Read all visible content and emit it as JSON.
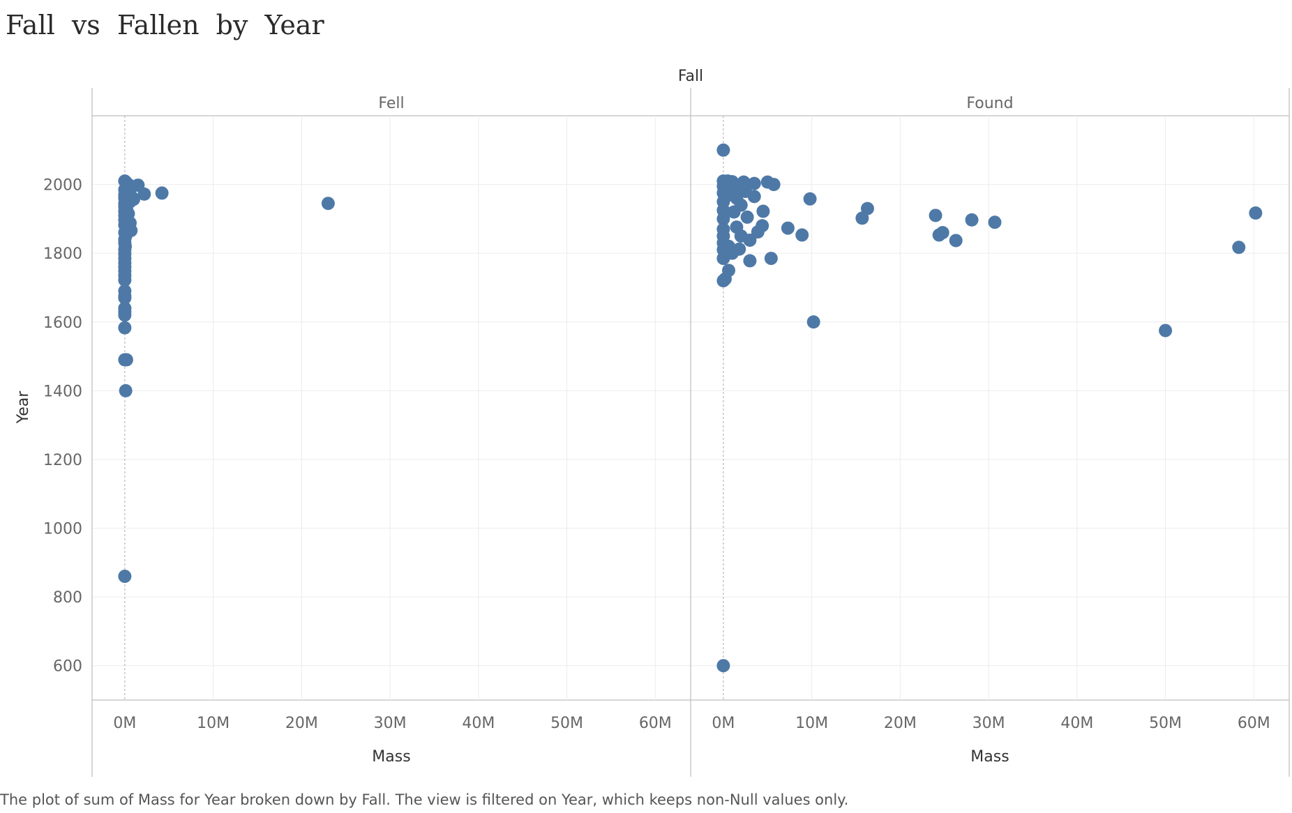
{
  "chart_data": {
    "type": "scatter",
    "title": "Fall vs Fallen by Year",
    "facet_title": "Fall",
    "xlabel": "Mass",
    "ylabel": "Year",
    "xlim": [
      -3700000,
      64000000
    ],
    "ylim": [
      500,
      2200
    ],
    "x_ticks": [
      "0M",
      "10M",
      "20M",
      "30M",
      "40M",
      "50M",
      "60M"
    ],
    "y_ticks": [
      "600",
      "800",
      "1000",
      "1200",
      "1400",
      "1600",
      "1800",
      "2000"
    ],
    "gridlines": true,
    "legend": "none",
    "marker_color": "#4e79a7",
    "caption": "The plot of sum of Mass for Year broken down by Fall. The view is filtered on Year, which keeps non-Null values only.",
    "panels": [
      {
        "name": "Fell",
        "points": [
          [
            0,
            2010
          ],
          [
            80000,
            2008
          ],
          [
            120000,
            2005
          ],
          [
            300000,
            2002
          ],
          [
            500000,
            1998
          ],
          [
            1500000,
            1998
          ],
          [
            700000,
            1990
          ],
          [
            0,
            1985
          ],
          [
            200000,
            1983
          ],
          [
            400000,
            1980
          ],
          [
            2200000,
            1972
          ],
          [
            4200000,
            1975
          ],
          [
            0,
            1970
          ],
          [
            300000,
            1968
          ],
          [
            800000,
            1963
          ],
          [
            0,
            1960
          ],
          [
            1000000,
            1957
          ],
          [
            600000,
            1950
          ],
          [
            0,
            1945
          ],
          [
            23000000,
            1945
          ],
          [
            100000,
            1940
          ],
          [
            0,
            1935
          ],
          [
            200000,
            1928
          ],
          [
            0,
            1922
          ],
          [
            400000,
            1915
          ],
          [
            0,
            1910
          ],
          [
            100000,
            1903
          ],
          [
            0,
            1897
          ],
          [
            600000,
            1888
          ],
          [
            0,
            1882
          ],
          [
            200000,
            1876
          ],
          [
            700000,
            1866
          ],
          [
            0,
            1860
          ],
          [
            100000,
            1850
          ],
          [
            0,
            1840
          ],
          [
            0,
            1830
          ],
          [
            50000,
            1820
          ],
          [
            0,
            1810
          ],
          [
            0,
            1798
          ],
          [
            0,
            1785
          ],
          [
            0,
            1772
          ],
          [
            0,
            1760
          ],
          [
            0,
            1748
          ],
          [
            0,
            1735
          ],
          [
            0,
            1722
          ],
          [
            0,
            1690
          ],
          [
            0,
            1675
          ],
          [
            0,
            1670
          ],
          [
            0,
            1640
          ],
          [
            0,
            1630
          ],
          [
            0,
            1620
          ],
          [
            0,
            1583
          ],
          [
            0,
            1490
          ],
          [
            200000,
            1490
          ],
          [
            100000,
            1400
          ],
          [
            0,
            860
          ]
        ]
      },
      {
        "name": "Found",
        "points": [
          [
            0,
            2100
          ],
          [
            0,
            2010
          ],
          [
            500000,
            2010
          ],
          [
            1000000,
            2008
          ],
          [
            2300000,
            2007
          ],
          [
            3500000,
            2003
          ],
          [
            5000000,
            2007
          ],
          [
            5700000,
            2000
          ],
          [
            0,
            1995
          ],
          [
            1200000,
            1990
          ],
          [
            2500000,
            1980
          ],
          [
            3500000,
            1965
          ],
          [
            0,
            1975
          ],
          [
            800000,
            1970
          ],
          [
            1500000,
            1960
          ],
          [
            9800000,
            1958
          ],
          [
            0,
            1950
          ],
          [
            2000000,
            1940
          ],
          [
            4500000,
            1922
          ],
          [
            16300000,
            1930
          ],
          [
            0,
            1925
          ],
          [
            1200000,
            1920
          ],
          [
            2700000,
            1905
          ],
          [
            15700000,
            1902
          ],
          [
            24000000,
            1910
          ],
          [
            0,
            1900
          ],
          [
            28100000,
            1897
          ],
          [
            30700000,
            1890
          ],
          [
            60200000,
            1917
          ],
          [
            4400000,
            1880
          ],
          [
            1500000,
            1876
          ],
          [
            7300000,
            1873
          ],
          [
            0,
            1870
          ],
          [
            3900000,
            1862
          ],
          [
            24800000,
            1860
          ],
          [
            8900000,
            1853
          ],
          [
            24400000,
            1853
          ],
          [
            0,
            1850
          ],
          [
            2000000,
            1850
          ],
          [
            3000000,
            1838
          ],
          [
            26300000,
            1837
          ],
          [
            0,
            1830
          ],
          [
            600000,
            1820
          ],
          [
            58300000,
            1817
          ],
          [
            0,
            1810
          ],
          [
            1800000,
            1812
          ],
          [
            1000000,
            1800
          ],
          [
            0,
            1785
          ],
          [
            5400000,
            1785
          ],
          [
            3000000,
            1778
          ],
          [
            0,
            1720
          ],
          [
            200000,
            1725
          ],
          [
            600000,
            1750
          ],
          [
            10200000,
            1600
          ],
          [
            50000000,
            1575
          ],
          [
            0,
            600
          ]
        ]
      }
    ]
  }
}
